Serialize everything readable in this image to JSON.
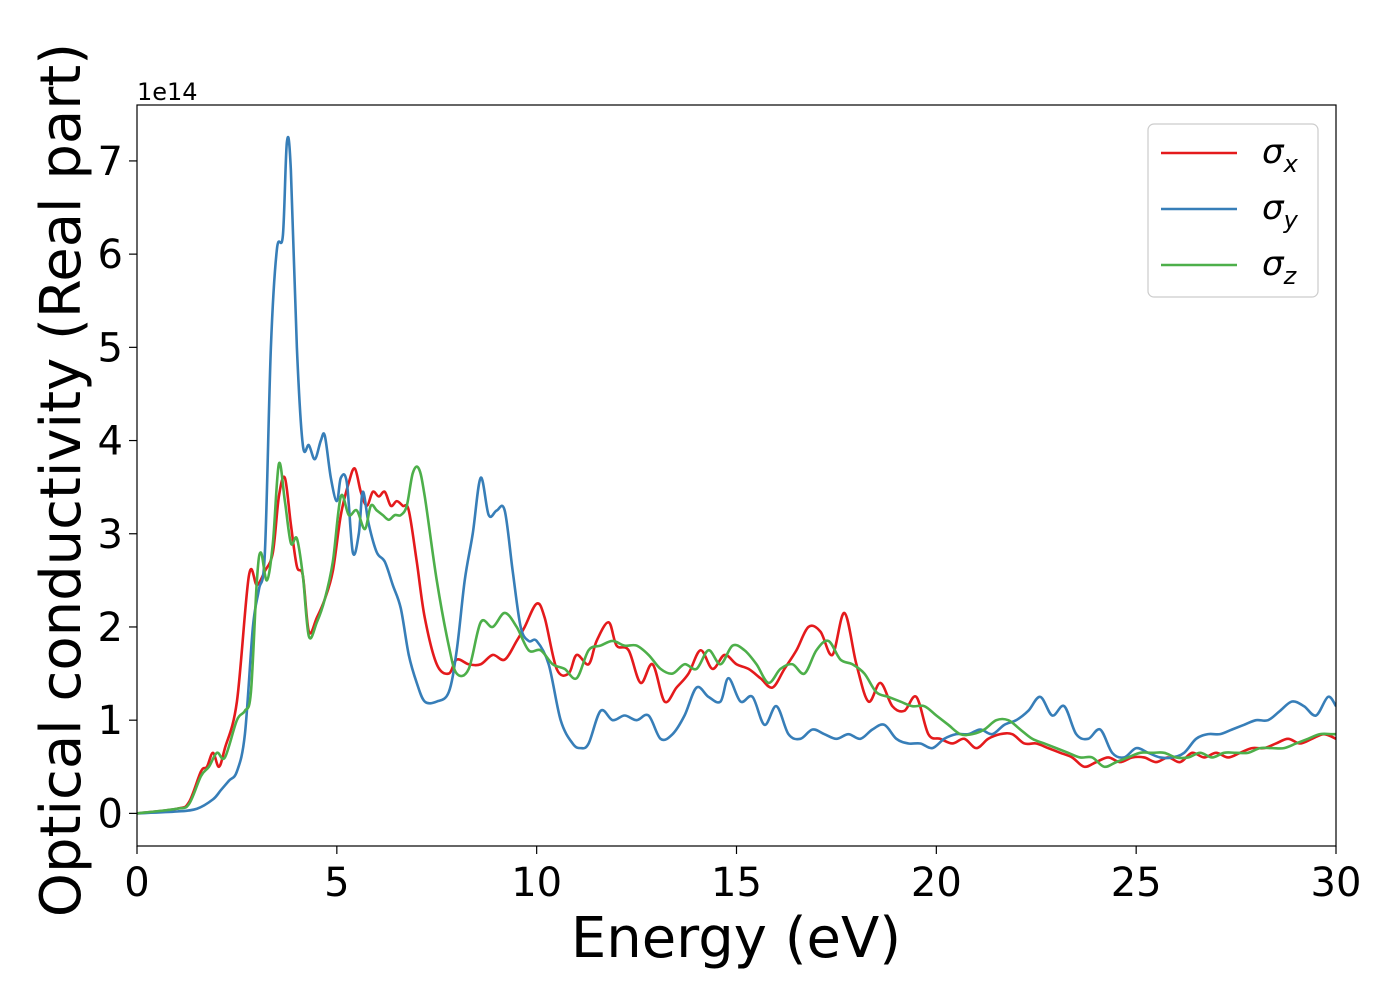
{
  "chart_data": {
    "type": "line",
    "xlabel": "Energy (eV)",
    "ylabel": "Optical conductivity (Real part)",
    "y_multiplier_label": "1e14",
    "xlim": [
      0,
      30
    ],
    "ylim": [
      -0.35,
      7.6
    ],
    "x_ticks": [
      0,
      5,
      10,
      15,
      20,
      25,
      30
    ],
    "y_ticks": [
      0,
      1,
      2,
      3,
      4,
      5,
      6,
      7
    ],
    "grid": false,
    "legend_position": "top-right",
    "series": [
      {
        "name": "σx",
        "legend_symbol": "σ",
        "legend_subscript": "x",
        "color": "#e41a1c",
        "x": [
          0,
          1,
          1.3,
          1.6,
          1.75,
          1.9,
          2.05,
          2.2,
          2.5,
          2.8,
          3.0,
          3.2,
          3.4,
          3.55,
          3.7,
          3.85,
          4.0,
          4.15,
          4.3,
          4.5,
          4.7,
          4.9,
          5.1,
          5.3,
          5.45,
          5.6,
          5.75,
          5.9,
          6.05,
          6.2,
          6.35,
          6.5,
          6.65,
          6.8,
          7.0,
          7.2,
          7.5,
          7.8,
          8.0,
          8.3,
          8.6,
          8.9,
          9.2,
          9.5,
          9.7,
          10.0,
          10.2,
          10.5,
          10.8,
          11.0,
          11.3,
          11.5,
          11.8,
          12.0,
          12.3,
          12.6,
          12.9,
          13.2,
          13.5,
          13.8,
          14.1,
          14.4,
          14.7,
          15.0,
          15.3,
          15.6,
          15.9,
          16.2,
          16.5,
          16.8,
          17.1,
          17.4,
          17.7,
          18.0,
          18.3,
          18.6,
          18.9,
          19.2,
          19.5,
          19.8,
          20.1,
          20.4,
          20.7,
          21.0,
          21.3,
          21.6,
          21.9,
          22.2,
          22.5,
          22.8,
          23.1,
          23.4,
          23.7,
          24.0,
          24.3,
          24.6,
          24.9,
          25.2,
          25.5,
          25.8,
          26.1,
          26.4,
          26.7,
          27.0,
          27.3,
          27.6,
          27.9,
          28.2,
          28.5,
          28.8,
          29.1,
          29.4,
          29.7,
          30.0
        ],
        "values": [
          0,
          0.05,
          0.12,
          0.45,
          0.5,
          0.65,
          0.5,
          0.7,
          1.2,
          2.55,
          2.45,
          2.6,
          2.8,
          3.4,
          3.6,
          3.1,
          2.65,
          2.55,
          1.95,
          2.1,
          2.3,
          2.6,
          3.2,
          3.55,
          3.7,
          3.45,
          3.3,
          3.45,
          3.4,
          3.45,
          3.3,
          3.35,
          3.3,
          3.25,
          2.7,
          2.1,
          1.6,
          1.5,
          1.65,
          1.6,
          1.6,
          1.7,
          1.65,
          1.85,
          2.0,
          2.25,
          2.1,
          1.55,
          1.5,
          1.7,
          1.6,
          1.85,
          2.05,
          1.8,
          1.75,
          1.4,
          1.6,
          1.2,
          1.35,
          1.5,
          1.75,
          1.55,
          1.7,
          1.6,
          1.55,
          1.45,
          1.35,
          1.55,
          1.75,
          2.0,
          1.95,
          1.7,
          2.15,
          1.6,
          1.2,
          1.4,
          1.15,
          1.1,
          1.25,
          0.85,
          0.8,
          0.75,
          0.8,
          0.7,
          0.8,
          0.85,
          0.85,
          0.75,
          0.75,
          0.7,
          0.65,
          0.6,
          0.5,
          0.55,
          0.6,
          0.55,
          0.6,
          0.6,
          0.55,
          0.6,
          0.55,
          0.65,
          0.6,
          0.65,
          0.6,
          0.65,
          0.7,
          0.7,
          0.75,
          0.8,
          0.75,
          0.8,
          0.85,
          0.8
        ]
      },
      {
        "name": "σy",
        "legend_symbol": "σ",
        "legend_subscript": "y",
        "color": "#377eb8",
        "x": [
          0,
          1,
          1.5,
          1.9,
          2.1,
          2.3,
          2.5,
          2.7,
          2.9,
          3.05,
          3.2,
          3.35,
          3.5,
          3.65,
          3.75,
          3.85,
          4.0,
          4.15,
          4.3,
          4.45,
          4.6,
          4.7,
          4.85,
          5.0,
          5.1,
          5.25,
          5.4,
          5.55,
          5.65,
          5.8,
          6.0,
          6.2,
          6.4,
          6.6,
          6.8,
          7.0,
          7.2,
          7.5,
          7.8,
          8.0,
          8.2,
          8.4,
          8.6,
          8.8,
          9.0,
          9.2,
          9.4,
          9.6,
          9.8,
          10.0,
          10.3,
          10.6,
          10.9,
          11.1,
          11.3,
          11.6,
          11.9,
          12.2,
          12.5,
          12.8,
          13.1,
          13.4,
          13.7,
          14.0,
          14.3,
          14.6,
          14.8,
          15.1,
          15.4,
          15.7,
          16.0,
          16.3,
          16.6,
          16.9,
          17.2,
          17.5,
          17.8,
          18.1,
          18.4,
          18.7,
          19.0,
          19.3,
          19.6,
          19.9,
          20.2,
          20.5,
          20.8,
          21.1,
          21.4,
          21.7,
          22.0,
          22.3,
          22.6,
          22.9,
          23.2,
          23.5,
          23.8,
          24.1,
          24.4,
          24.7,
          25.0,
          25.3,
          25.6,
          25.9,
          26.2,
          26.5,
          26.8,
          27.1,
          27.4,
          27.7,
          28.0,
          28.3,
          28.6,
          28.9,
          29.2,
          29.5,
          29.8,
          30.0
        ],
        "values": [
          0,
          0.02,
          0.05,
          0.15,
          0.25,
          0.35,
          0.45,
          0.85,
          2.0,
          2.4,
          2.8,
          5.0,
          6.05,
          6.2,
          7.2,
          6.9,
          5.0,
          3.95,
          3.95,
          3.8,
          4.0,
          4.05,
          3.6,
          3.35,
          3.6,
          3.55,
          2.8,
          3.0,
          3.45,
          3.1,
          2.8,
          2.7,
          2.45,
          2.2,
          1.7,
          1.4,
          1.2,
          1.2,
          1.3,
          1.75,
          2.5,
          3.0,
          3.6,
          3.2,
          3.25,
          3.25,
          2.6,
          2.0,
          1.85,
          1.85,
          1.6,
          1.0,
          0.75,
          0.7,
          0.75,
          1.1,
          1.0,
          1.05,
          1.0,
          1.05,
          0.8,
          0.85,
          1.05,
          1.35,
          1.25,
          1.2,
          1.45,
          1.2,
          1.25,
          0.95,
          1.15,
          0.85,
          0.8,
          0.9,
          0.85,
          0.8,
          0.85,
          0.8,
          0.9,
          0.95,
          0.8,
          0.75,
          0.75,
          0.7,
          0.8,
          0.85,
          0.85,
          0.9,
          0.85,
          0.95,
          1.0,
          1.1,
          1.25,
          1.05,
          1.15,
          0.85,
          0.8,
          0.9,
          0.65,
          0.6,
          0.7,
          0.65,
          0.6,
          0.6,
          0.65,
          0.8,
          0.85,
          0.85,
          0.9,
          0.95,
          1.0,
          1.0,
          1.1,
          1.2,
          1.15,
          1.05,
          1.25,
          1.15
        ]
      },
      {
        "name": "σz",
        "legend_symbol": "σ",
        "legend_subscript": "z",
        "color": "#4daf4a",
        "x": [
          0,
          1,
          1.3,
          1.6,
          1.8,
          2.0,
          2.2,
          2.5,
          2.7,
          2.85,
          3.0,
          3.1,
          3.25,
          3.4,
          3.55,
          3.7,
          3.85,
          4.0,
          4.15,
          4.3,
          4.5,
          4.7,
          4.9,
          5.1,
          5.3,
          5.5,
          5.7,
          5.85,
          6.0,
          6.15,
          6.3,
          6.45,
          6.6,
          6.75,
          6.9,
          7.05,
          7.2,
          7.5,
          7.8,
          8.0,
          8.3,
          8.6,
          8.9,
          9.2,
          9.5,
          9.8,
          10.1,
          10.4,
          10.7,
          11.0,
          11.3,
          11.6,
          11.9,
          12.2,
          12.5,
          12.8,
          13.1,
          13.4,
          13.7,
          14.0,
          14.3,
          14.6,
          14.9,
          15.2,
          15.5,
          15.8,
          16.1,
          16.4,
          16.7,
          17.0,
          17.3,
          17.6,
          17.9,
          18.2,
          18.5,
          18.8,
          19.1,
          19.4,
          19.7,
          20.0,
          20.3,
          20.6,
          20.9,
          21.2,
          21.5,
          21.8,
          22.1,
          22.4,
          22.7,
          23.0,
          23.3,
          23.6,
          23.9,
          24.2,
          24.5,
          24.8,
          25.1,
          25.4,
          25.7,
          26.0,
          26.3,
          26.6,
          26.9,
          27.2,
          27.5,
          27.8,
          28.1,
          28.4,
          28.7,
          29.0,
          29.3,
          29.6,
          29.9,
          30.0
        ],
        "values": [
          0,
          0.05,
          0.1,
          0.4,
          0.5,
          0.65,
          0.6,
          1.0,
          1.1,
          1.3,
          2.5,
          2.8,
          2.5,
          2.9,
          3.75,
          3.35,
          2.9,
          2.95,
          2.55,
          1.9,
          2.05,
          2.3,
          2.7,
          3.4,
          3.2,
          3.25,
          3.05,
          3.3,
          3.25,
          3.2,
          3.15,
          3.2,
          3.2,
          3.3,
          3.65,
          3.7,
          3.4,
          2.5,
          1.8,
          1.5,
          1.55,
          2.05,
          2.0,
          2.15,
          2.0,
          1.75,
          1.75,
          1.6,
          1.55,
          1.45,
          1.75,
          1.8,
          1.85,
          1.8,
          1.8,
          1.7,
          1.55,
          1.5,
          1.6,
          1.55,
          1.75,
          1.6,
          1.8,
          1.75,
          1.6,
          1.4,
          1.55,
          1.6,
          1.5,
          1.75,
          1.85,
          1.65,
          1.6,
          1.5,
          1.3,
          1.25,
          1.2,
          1.15,
          1.15,
          1.05,
          0.95,
          0.85,
          0.85,
          0.9,
          1.0,
          1.0,
          0.9,
          0.8,
          0.75,
          0.7,
          0.65,
          0.6,
          0.6,
          0.5,
          0.55,
          0.6,
          0.65,
          0.65,
          0.65,
          0.6,
          0.6,
          0.65,
          0.6,
          0.65,
          0.65,
          0.65,
          0.7,
          0.7,
          0.7,
          0.75,
          0.8,
          0.85,
          0.85,
          0.85
        ]
      }
    ]
  }
}
